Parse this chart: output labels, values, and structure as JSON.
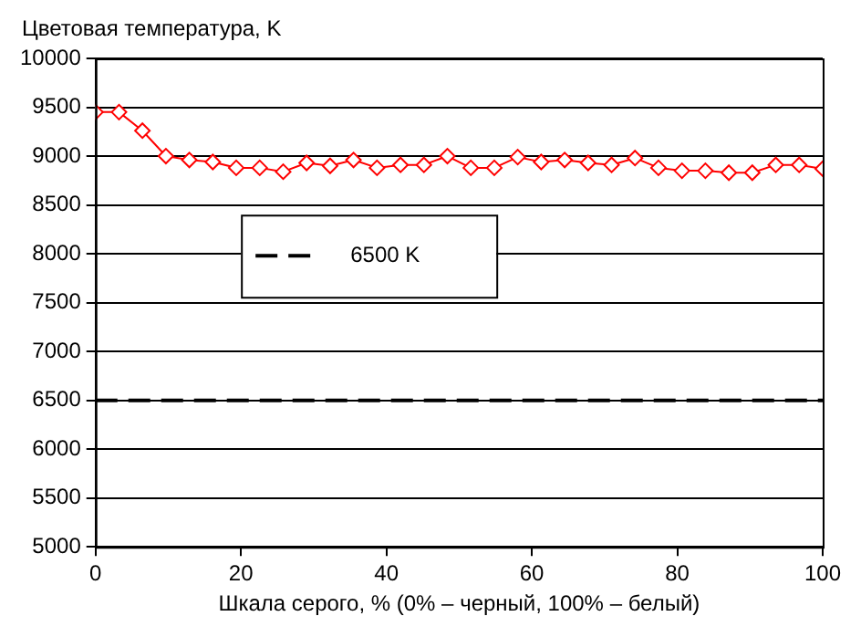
{
  "chart_data": {
    "type": "line",
    "xlabel": "Шкала серого, % (0% – черный, 100% – белый)",
    "ylabel": "Цветовая температура, K",
    "x": [
      0,
      3.23,
      6.45,
      9.68,
      12.9,
      16.13,
      19.35,
      22.58,
      25.81,
      29.03,
      32.26,
      35.48,
      38.71,
      41.94,
      45.16,
      48.39,
      51.61,
      54.84,
      58.06,
      61.29,
      64.52,
      67.74,
      70.97,
      74.19,
      77.42,
      80.65,
      83.87,
      87.1,
      90.32,
      93.55,
      96.77,
      100
    ],
    "series": [
      {
        "color": "#ff0000",
        "values": [
          9450,
          9450,
          9260,
          9000,
          8960,
          8940,
          8880,
          8880,
          8840,
          8930,
          8900,
          8960,
          8880,
          8910,
          8910,
          9000,
          8880,
          8880,
          8990,
          8940,
          8960,
          8930,
          8910,
          8980,
          8880,
          8850,
          8850,
          8830,
          8830,
          8910,
          8910,
          8870
        ]
      }
    ],
    "xlim": [
      0,
      100
    ],
    "xticks": [
      0,
      20,
      40,
      60,
      80,
      100
    ],
    "ylim": [
      5000,
      10000
    ],
    "yticks": [
      5000,
      5500,
      6000,
      6500,
      7000,
      7500,
      8000,
      8500,
      9000,
      9500,
      10000
    ],
    "ref_lines": [
      {
        "axis": "y",
        "value": 6500,
        "label": "6500 K",
        "color": "#000000",
        "line_style": "dashed"
      }
    ],
    "grid": "y",
    "legend": "center",
    "marker": "diamond",
    "line_style": "solid"
  }
}
